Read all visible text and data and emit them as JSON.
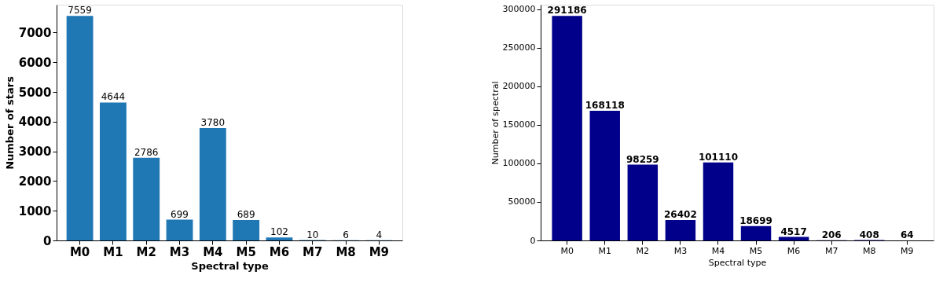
{
  "chart_data": [
    {
      "type": "bar",
      "xlabel": "Spectral type",
      "ylabel": "Number of stars",
      "categories": [
        "M0",
        "M1",
        "M2",
        "M3",
        "M4",
        "M5",
        "M6",
        "M7",
        "M8",
        "M9"
      ],
      "values": [
        7559,
        4644,
        2786,
        699,
        3780,
        689,
        102,
        10,
        6,
        4
      ],
      "color": "#1f77b4",
      "ylim": [
        0,
        7937
      ],
      "yticks": [
        0,
        1000,
        2000,
        3000,
        4000,
        5000,
        6000,
        7000
      ],
      "data_labels": true,
      "grid": false
    },
    {
      "type": "bar",
      "xlabel": "Spectral type",
      "ylabel": "Number of spectral",
      "categories": [
        "M0",
        "M1",
        "M2",
        "M3",
        "M4",
        "M5",
        "M6",
        "M7",
        "M8",
        "M9"
      ],
      "values": [
        291186,
        168118,
        98259,
        26402,
        101110,
        18699,
        4517,
        206,
        408,
        64
      ],
      "color": "#00008b",
      "ylim": [
        0,
        305745
      ],
      "yticks": [
        0,
        50000,
        100000,
        150000,
        200000,
        250000,
        300000
      ],
      "data_labels": true,
      "grid": false
    }
  ]
}
